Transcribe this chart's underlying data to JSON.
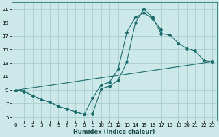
{
  "xlabel": "Humidex (Indice chaleur)",
  "bg_color": "#cce8e8",
  "grid_color": "#aacccc",
  "line_color": "#1a6b6b",
  "xlim": [
    -0.5,
    23.5
  ],
  "ylim": [
    4.5,
    22.0
  ],
  "xticks": [
    0,
    1,
    2,
    3,
    4,
    5,
    6,
    7,
    8,
    9,
    10,
    11,
    12,
    13,
    14,
    15,
    16,
    17,
    18,
    19,
    20,
    21,
    22,
    23
  ],
  "yticks": [
    5,
    7,
    9,
    11,
    13,
    15,
    17,
    19,
    21
  ],
  "line1_x": [
    0,
    1,
    2,
    3,
    4,
    5,
    6,
    7,
    8,
    9,
    10,
    11,
    12,
    13,
    14,
    15,
    16,
    17,
    18,
    19,
    20,
    21,
    22,
    23
  ],
  "line1_y": [
    9.0,
    8.8,
    8.2,
    7.6,
    7.2,
    6.6,
    6.2,
    5.8,
    5.4,
    5.5,
    9.2,
    9.6,
    10.5,
    13.2,
    19.0,
    21.0,
    19.8,
    17.4,
    17.2,
    16.0,
    15.2,
    14.8,
    13.4,
    13.2
  ],
  "line2_x": [
    0,
    1,
    2,
    3,
    4,
    5,
    6,
    7,
    8,
    9,
    10,
    11,
    12,
    13,
    14,
    15,
    16,
    17,
    18,
    19,
    20,
    21,
    22,
    23
  ],
  "line2_y": [
    9.0,
    8.8,
    8.2,
    7.6,
    7.2,
    6.6,
    6.2,
    5.8,
    5.4,
    7.8,
    9.8,
    10.2,
    12.2,
    17.6,
    19.8,
    20.4,
    19.6,
    18.0,
    13.2,
    13.2,
    13.2,
    13.2,
    13.2,
    13.2
  ],
  "line3_x": [
    0,
    23
  ],
  "line3_y": [
    9.0,
    13.2
  ]
}
